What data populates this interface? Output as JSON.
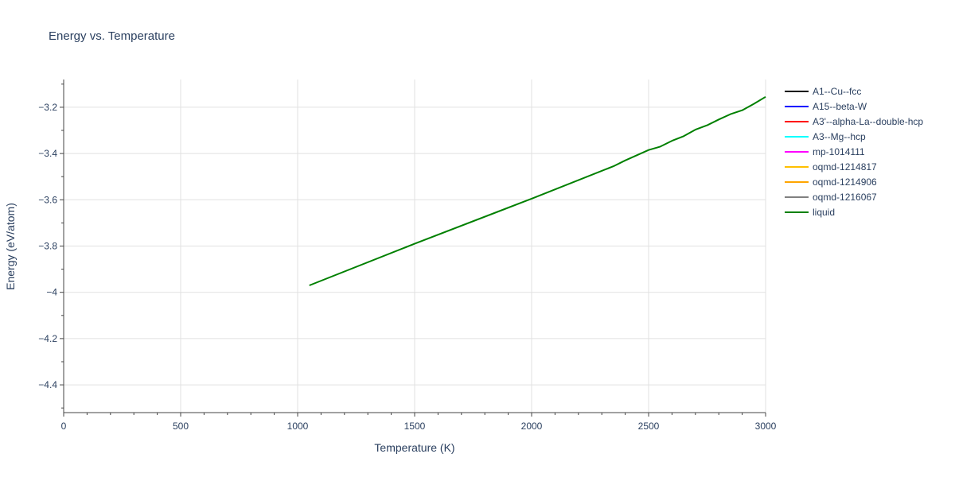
{
  "chart_data": {
    "type": "line",
    "title": "Energy vs. Temperature",
    "xlabel": "Temperature (K)",
    "ylabel": "Energy (eV/atom)",
    "xlim": [
      0,
      3000
    ],
    "ylim": [
      -4.52,
      -3.08
    ],
    "x_ticks": [
      0,
      500,
      1000,
      1500,
      2000,
      2500,
      3000
    ],
    "x_tick_labels": [
      "0",
      "500",
      "1000",
      "1500",
      "2000",
      "2500",
      "3000"
    ],
    "y_ticks": [
      -3.2,
      -3.4,
      -3.6,
      -3.8,
      -4.0,
      -4.2,
      -4.4
    ],
    "y_tick_labels": [
      "−3.2",
      "−3.4",
      "−3.6",
      "−3.8",
      "−4",
      "−4.2",
      "−4.4"
    ],
    "grid": true,
    "legend_position": "right",
    "series": [
      {
        "name": "A1--Cu--fcc",
        "color": "#000000",
        "x": [],
        "y": []
      },
      {
        "name": "A15--beta-W",
        "color": "#0000ff",
        "x": [],
        "y": []
      },
      {
        "name": "A3'--alpha-La--double-hcp",
        "color": "#ff0000",
        "x": [],
        "y": []
      },
      {
        "name": "A3--Mg--hcp",
        "color": "#00ffff",
        "x": [],
        "y": []
      },
      {
        "name": "mp-1014111",
        "color": "#ff00ff",
        "x": [],
        "y": []
      },
      {
        "name": "oqmd-1214817",
        "color": "#ffc000",
        "x": [],
        "y": []
      },
      {
        "name": "oqmd-1214906",
        "color": "#ffa500",
        "x": [],
        "y": []
      },
      {
        "name": "oqmd-1216067",
        "color": "#808080",
        "x": [],
        "y": []
      },
      {
        "name": "liquid",
        "color": "#008000",
        "x": [
          1050,
          1500,
          2000,
          2350,
          2400,
          2500,
          2550,
          2600,
          2650,
          2700,
          2750,
          2800,
          2850,
          2900,
          2950,
          3000
        ],
        "y": [
          -3.97,
          -3.79,
          -3.595,
          -3.455,
          -3.43,
          -3.385,
          -3.37,
          -3.345,
          -3.325,
          -3.297,
          -3.278,
          -3.253,
          -3.23,
          -3.213,
          -3.185,
          -3.155
        ]
      }
    ]
  }
}
